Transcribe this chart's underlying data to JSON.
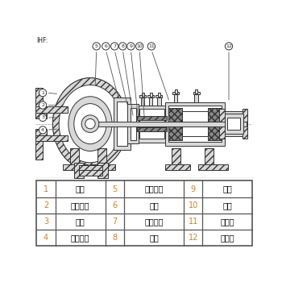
{
  "title": "IHF:",
  "table_rows": [
    [
      "1",
      "泵体",
      "5",
      "泵盖衬里",
      "9",
      "动环"
    ],
    [
      "2",
      "叶轮骨架",
      "6",
      "泵盖",
      "10",
      "泵轴"
    ],
    [
      "3",
      "叶轮",
      "7",
      "机封盖压",
      "11",
      "轴承体"
    ],
    [
      "4",
      "泵体衬里",
      "8",
      "静环",
      "12",
      "联轴器"
    ]
  ],
  "num_color": "#d4821a",
  "text_color": "#000000",
  "border_color": "#555555",
  "bg_color": "#ffffff",
  "callout_nums_top": [
    "5",
    "6",
    "7",
    "8",
    "9",
    "10",
    "11",
    "12"
  ],
  "callout_nums_left": [
    "1",
    "2",
    "3",
    "4"
  ],
  "line_color": "#333333",
  "gray_fill": "#b0b0b0",
  "light_gray": "#d8d8d8",
  "dark_gray": "#888888",
  "hatch_color": "#444444"
}
